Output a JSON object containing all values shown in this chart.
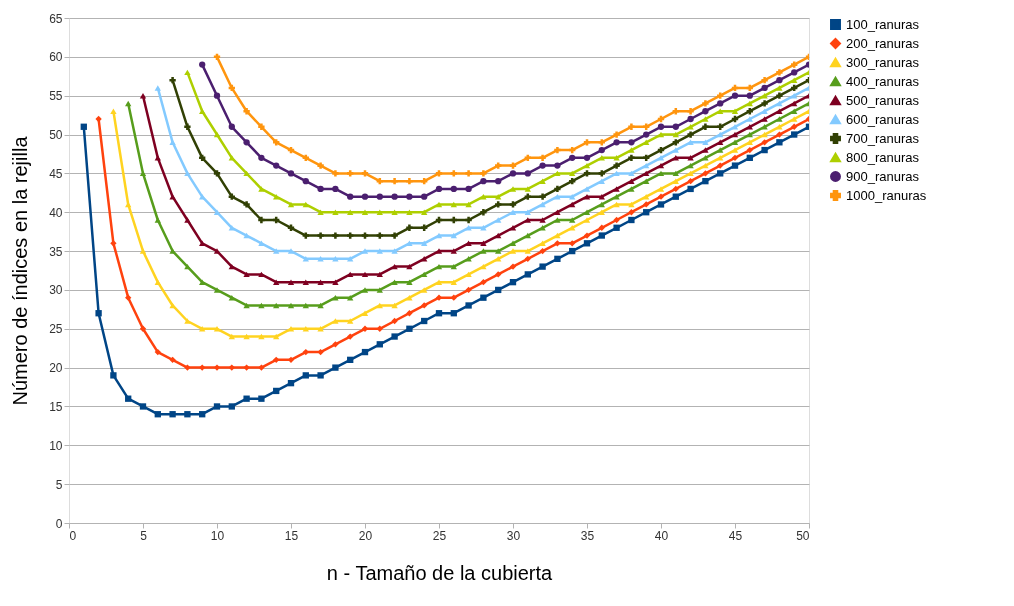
{
  "chart_data": {
    "type": "line",
    "xlabel": "n - Tamaño de la cubierta",
    "ylabel": "Número de índices en la rejilla",
    "x": [
      1,
      2,
      3,
      4,
      5,
      6,
      7,
      8,
      9,
      10,
      11,
      12,
      13,
      14,
      15,
      16,
      17,
      18,
      19,
      20,
      21,
      22,
      23,
      24,
      25,
      26,
      27,
      28,
      29,
      30,
      31,
      32,
      33,
      34,
      35,
      36,
      37,
      38,
      39,
      40,
      41,
      42,
      43,
      44,
      45,
      46,
      47,
      48,
      49,
      50
    ],
    "series": [
      {
        "name": "100_ranuras",
        "color": "#004586",
        "marker": "square",
        "values": [
          51,
          27,
          19,
          16,
          15,
          14,
          14,
          14,
          14,
          15,
          15,
          16,
          16,
          17,
          18,
          19,
          19,
          20,
          21,
          22,
          23,
          24,
          25,
          26,
          27,
          27,
          28,
          29,
          30,
          31,
          32,
          33,
          34,
          35,
          36,
          37,
          38,
          39,
          40,
          41,
          42,
          43,
          44,
          45,
          46,
          47,
          48,
          49,
          50,
          51
        ]
      },
      {
        "name": "200_ranuras",
        "color": "#ff420e",
        "marker": "diamond",
        "values": [
          null,
          52,
          36,
          29,
          25,
          22,
          21,
          20,
          20,
          20,
          20,
          20,
          20,
          21,
          21,
          22,
          22,
          23,
          24,
          25,
          25,
          26,
          27,
          28,
          29,
          29,
          30,
          31,
          32,
          33,
          34,
          35,
          36,
          36,
          37,
          38,
          39,
          40,
          41,
          42,
          43,
          44,
          45,
          46,
          47,
          48,
          49,
          50,
          51,
          52
        ]
      },
      {
        "name": "300_ranuras",
        "color": "#ffd320",
        "marker": "triangle",
        "values": [
          null,
          null,
          53,
          41,
          35,
          31,
          28,
          26,
          25,
          25,
          24,
          24,
          24,
          24,
          25,
          25,
          25,
          26,
          26,
          27,
          28,
          28,
          29,
          30,
          31,
          31,
          32,
          33,
          34,
          35,
          35,
          36,
          37,
          38,
          39,
          40,
          41,
          41,
          42,
          43,
          44,
          45,
          46,
          47,
          48,
          49,
          50,
          51,
          52,
          53
        ]
      },
      {
        "name": "400_ranuras",
        "color": "#579d1c",
        "marker": "triangle",
        "values": [
          null,
          null,
          null,
          54,
          45,
          39,
          35,
          33,
          31,
          30,
          29,
          28,
          28,
          28,
          28,
          28,
          28,
          29,
          29,
          30,
          30,
          31,
          31,
          32,
          33,
          33,
          34,
          35,
          35,
          36,
          37,
          38,
          39,
          39,
          40,
          41,
          42,
          43,
          44,
          45,
          45,
          46,
          47,
          48,
          49,
          50,
          51,
          52,
          53,
          54
        ]
      },
      {
        "name": "500_ranuras",
        "color": "#7e0021",
        "marker": "triangle",
        "values": [
          null,
          null,
          null,
          null,
          55,
          47,
          42,
          39,
          36,
          35,
          33,
          32,
          32,
          31,
          31,
          31,
          31,
          31,
          32,
          32,
          32,
          33,
          33,
          34,
          35,
          35,
          36,
          36,
          37,
          38,
          39,
          39,
          40,
          41,
          42,
          42,
          43,
          44,
          45,
          46,
          47,
          47,
          48,
          49,
          50,
          51,
          52,
          53,
          54,
          55
        ]
      },
      {
        "name": "600_ranuras",
        "color": "#83caff",
        "marker": "triangle",
        "values": [
          null,
          null,
          null,
          null,
          null,
          56,
          49,
          45,
          42,
          40,
          38,
          37,
          36,
          35,
          35,
          34,
          34,
          34,
          34,
          35,
          35,
          35,
          36,
          36,
          37,
          37,
          38,
          38,
          39,
          40,
          40,
          41,
          42,
          42,
          43,
          44,
          45,
          45,
          46,
          47,
          48,
          49,
          49,
          50,
          51,
          52,
          53,
          54,
          55,
          56
        ]
      },
      {
        "name": "700_ranuras",
        "color": "#314004",
        "marker": "cross",
        "values": [
          null,
          null,
          null,
          null,
          null,
          null,
          57,
          51,
          47,
          45,
          42,
          41,
          39,
          39,
          38,
          37,
          37,
          37,
          37,
          37,
          37,
          37,
          38,
          38,
          39,
          39,
          39,
          40,
          41,
          41,
          42,
          42,
          43,
          44,
          45,
          45,
          46,
          47,
          47,
          48,
          49,
          50,
          51,
          51,
          52,
          53,
          54,
          55,
          56,
          57
        ]
      },
      {
        "name": "800_ranuras",
        "color": "#aecf00",
        "marker": "triangle",
        "values": [
          null,
          null,
          null,
          null,
          null,
          null,
          null,
          58,
          53,
          50,
          47,
          45,
          43,
          42,
          41,
          41,
          40,
          40,
          40,
          40,
          40,
          40,
          40,
          40,
          41,
          41,
          41,
          42,
          42,
          43,
          43,
          44,
          45,
          45,
          46,
          47,
          47,
          48,
          49,
          50,
          50,
          51,
          52,
          53,
          53,
          54,
          55,
          56,
          57,
          58
        ]
      },
      {
        "name": "900_ranuras",
        "color": "#4b1f6f",
        "marker": "circle",
        "values": [
          null,
          null,
          null,
          null,
          null,
          null,
          null,
          null,
          59,
          55,
          51,
          49,
          47,
          46,
          45,
          44,
          43,
          43,
          42,
          42,
          42,
          42,
          42,
          42,
          43,
          43,
          43,
          44,
          44,
          45,
          45,
          46,
          46,
          47,
          47,
          48,
          49,
          49,
          50,
          51,
          51,
          52,
          53,
          54,
          55,
          55,
          56,
          57,
          58,
          59
        ]
      },
      {
        "name": "1000_ranuras",
        "color": "#ff950e",
        "marker": "cross",
        "values": [
          null,
          null,
          null,
          null,
          null,
          null,
          null,
          null,
          null,
          60,
          56,
          53,
          51,
          49,
          48,
          47,
          46,
          45,
          45,
          45,
          44,
          44,
          44,
          44,
          45,
          45,
          45,
          45,
          46,
          46,
          47,
          47,
          48,
          48,
          49,
          49,
          50,
          51,
          51,
          52,
          53,
          53,
          54,
          55,
          56,
          56,
          57,
          58,
          59,
          60
        ]
      }
    ],
    "xlim": [
      0,
      50
    ],
    "xticks": [
      0,
      5,
      10,
      15,
      20,
      25,
      30,
      35,
      40,
      45,
      50
    ],
    "ylim": [
      0,
      65
    ],
    "yticks": [
      0,
      5,
      10,
      15,
      20,
      25,
      30,
      35,
      40,
      45,
      50,
      55,
      60,
      65
    ],
    "grid": "y",
    "legend": "right"
  }
}
